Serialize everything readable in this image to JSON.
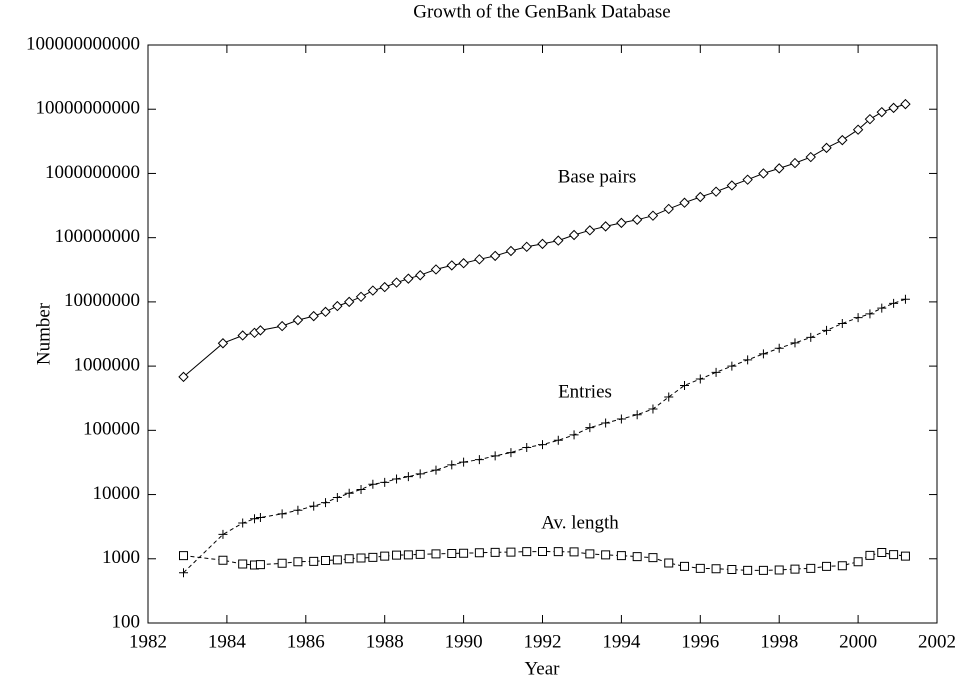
{
  "chart_data": {
    "type": "line",
    "title": "Growth of the GenBank Database",
    "x_label": "Year",
    "y_label": "Number",
    "log_y": true,
    "xlim": [
      1982,
      2002
    ],
    "ylim": [
      100,
      100000000000
    ],
    "xticks": [
      1982,
      1984,
      1986,
      1988,
      1990,
      1992,
      1994,
      1996,
      1998,
      2000,
      2002
    ],
    "yticks": [
      100,
      1000,
      10000,
      100000,
      1000000,
      10000000,
      100000000,
      1000000000,
      10000000000,
      100000000000
    ],
    "annotations": [
      "Base pairs",
      "Entries",
      "Av. length"
    ],
    "x": [
      1982.9,
      1983.9,
      1984.4,
      1984.7,
      1984.85,
      1985.4,
      1985.8,
      1986.2,
      1986.5,
      1986.8,
      1987.1,
      1987.4,
      1987.7,
      1988.0,
      1988.3,
      1988.6,
      1988.9,
      1989.3,
      1989.7,
      1990.0,
      1990.4,
      1990.8,
      1991.2,
      1991.6,
      1992.0,
      1992.4,
      1992.8,
      1993.2,
      1993.6,
      1994.0,
      1994.4,
      1994.8,
      1995.2,
      1995.6,
      1996.0,
      1996.4,
      1996.8,
      1997.2,
      1997.6,
      1998.0,
      1998.4,
      1998.8,
      1999.2,
      1999.6,
      2000.0,
      2000.3,
      2000.6,
      2000.9,
      2001.2
    ],
    "series": [
      {
        "name": "Base pairs",
        "color": "#000000",
        "marker": "diamond",
        "dash": false,
        "values": [
          680000,
          2270000,
          3000000,
          3300000,
          3600000,
          4200000,
          5200000,
          6000000,
          7000000,
          8600000,
          10000000,
          12000000,
          15000000,
          17000000,
          20000000,
          23000000,
          26000000,
          32000000,
          37000000,
          40000000,
          46000000,
          52000000,
          62000000,
          72000000,
          80000000,
          90000000,
          110000000,
          130000000,
          150000000,
          170000000,
          190000000,
          220000000,
          280000000,
          350000000,
          430000000,
          520000000,
          650000000,
          800000000,
          1000000000,
          1200000000,
          1450000000,
          1800000000,
          2500000000,
          3300000000,
          4800000000,
          7000000000,
          9000000000,
          10500000000,
          12000000000
        ]
      },
      {
        "name": "Entries",
        "color": "#000000",
        "marker": "plus",
        "dash": true,
        "values": [
          606,
          2400,
          3600,
          4200,
          4400,
          5000,
          5700,
          6600,
          7500,
          9000,
          10500,
          12000,
          14500,
          15500,
          17500,
          19000,
          21000,
          24000,
          29000,
          32000,
          35000,
          40000,
          45000,
          54000,
          60000,
          70000,
          85000,
          110000,
          130000,
          150000,
          175000,
          215000,
          330000,
          500000,
          630000,
          800000,
          1000000,
          1250000,
          1550000,
          1900000,
          2300000,
          2800000,
          3600000,
          4600000,
          5700000,
          6500000,
          8000000,
          9500000,
          11000000
        ]
      },
      {
        "name": "Av. length",
        "color": "#000000",
        "marker": "square",
        "dash": true,
        "values": [
          1120,
          950,
          830,
          800,
          810,
          850,
          900,
          910,
          940,
          960,
          1000,
          1030,
          1050,
          1100,
          1140,
          1150,
          1170,
          1190,
          1210,
          1220,
          1240,
          1260,
          1270,
          1290,
          1300,
          1290,
          1280,
          1190,
          1150,
          1120,
          1080,
          1040,
          860,
          760,
          710,
          700,
          680,
          660,
          660,
          670,
          690,
          710,
          760,
          780,
          900,
          1130,
          1250,
          1160,
          1100
        ]
      }
    ]
  }
}
